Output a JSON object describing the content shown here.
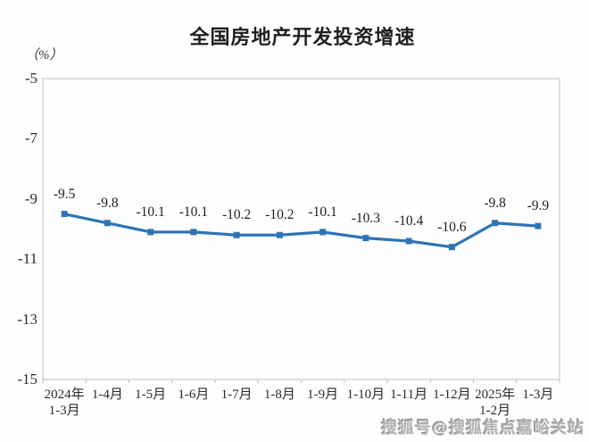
{
  "chart": {
    "title": "全国房地产开发投资增速",
    "unit_label": "（%）"
  },
  "chart_data": {
    "type": "line",
    "title": "全国房地产开发投资增速",
    "ylabel": "（%）",
    "categories": [
      [
        "2024年",
        "1-3月"
      ],
      [
        "1-4月"
      ],
      [
        "1-5月"
      ],
      [
        "1-6月"
      ],
      [
        "1-7月"
      ],
      [
        "1-8月"
      ],
      [
        "1-9月"
      ],
      [
        "1-10月"
      ],
      [
        "1-11月"
      ],
      [
        "1-12月"
      ],
      [
        "2025年",
        "1-2月"
      ],
      [
        "1-3月"
      ]
    ],
    "values": [
      -9.5,
      -9.8,
      -10.1,
      -10.1,
      -10.2,
      -10.2,
      -10.1,
      -10.3,
      -10.4,
      -10.6,
      -9.8,
      -9.9
    ],
    "data_labels": [
      "-9.5",
      "-9.8",
      "-10.1",
      "-10.1",
      "-10.2",
      "-10.2",
      "-10.1",
      "-10.3",
      "-10.4",
      "-10.6",
      "-9.8",
      "-9.9"
    ],
    "yticks": [
      "-5",
      "-7",
      "-9",
      "-11",
      "-13",
      "-15"
    ],
    "ylim": [
      -15,
      -5
    ],
    "grid": false,
    "legend": "none",
    "line_color": "#2E74B5",
    "marker": "square",
    "border_color": "#bfbfbf"
  },
  "watermark": {
    "text": "搜狐号@搜狐焦点嘉峪关站"
  }
}
